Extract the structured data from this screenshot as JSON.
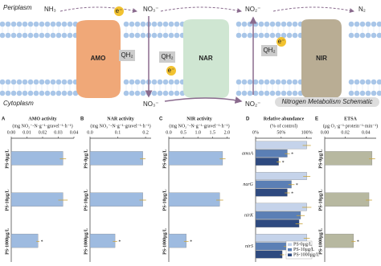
{
  "schematic": {
    "periplasm": "Periplasm",
    "cytoplasm": "Cytoplasm",
    "nh3": "NH₃",
    "no3_top": "NO₃⁻",
    "no2_top": "NO₂⁻",
    "n2": "N₂",
    "no3_bottom": "NO₃⁻",
    "no2_bottom": "NO₂⁻",
    "amo": "AMO",
    "nar": "NAR",
    "nir": "NIR",
    "qh2_1": "QH₂",
    "qh2_2": "QH₂",
    "qh2_3": "QH₂",
    "e1": "e⁻",
    "e2": "e⁻",
    "e3": "e⁻",
    "caption": "Nitrogen Metabolism Schematic"
  },
  "chart_data": [
    {
      "type": "bar",
      "panel": "A",
      "title": "AMO activity",
      "unit": "(mg NO₂⁻-N·g⁻¹·gravel⁻¹·h⁻¹)",
      "categories": [
        "PS-0μg/L",
        "PS-10μg/L",
        "PS-1000μg/L"
      ],
      "values": [
        0.033,
        0.033,
        0.017
      ],
      "errors": [
        0.002,
        0.003,
        0.001
      ],
      "stars": [
        null,
        null,
        "*"
      ],
      "color": "#9ebbe0",
      "xlim": [
        0,
        0.04
      ],
      "xticks": [
        {
          "value": 0,
          "label": "0.00"
        },
        0.01,
        0.02,
        0.03,
        0.04
      ]
    },
    {
      "type": "bar",
      "panel": "B",
      "title": "NAR activity",
      "unit": "(mg NO₃⁻-N·g⁻¹·gravel⁻¹·h⁻¹)",
      "categories": [
        "PS-0μg/L",
        "PS-10μg/L",
        "PS-1000μg/L"
      ],
      "values": [
        0.19,
        0.19,
        0.09
      ],
      "errors": [
        0.01,
        0.012,
        0.008
      ],
      "stars": [
        null,
        null,
        "*"
      ],
      "color": "#9ebbe0",
      "xlim": [
        0,
        0.22
      ],
      "xticks": [
        {
          "value": 0,
          "label": "0.0"
        },
        0.1,
        0.2
      ]
    },
    {
      "type": "bar",
      "panel": "C",
      "title": "NIR activity",
      "unit": "(mg NO₂⁻-N·g⁻¹·gravel⁻¹·h⁻¹)",
      "categories": [
        "PS-0μg/L",
        "PS-10μg/L",
        "PS-1000μg/L"
      ],
      "values": [
        1.85,
        1.75,
        0.6
      ],
      "errors": [
        0.1,
        0.12,
        0.08
      ],
      "stars": [
        null,
        null,
        "*"
      ],
      "color": "#9ebbe0",
      "xlim": [
        0,
        2.1
      ],
      "xticks": [
        {
          "value": 0,
          "label": "0.0"
        },
        0.5,
        {
          "value": 1,
          "label": "1.0"
        },
        1.5,
        {
          "value": 2,
          "label": "2.0"
        }
      ]
    },
    {
      "type": "bar",
      "panel": "D",
      "title": "Relative abundance",
      "unit": "(% of control)",
      "categories": [
        "amoA",
        "narG",
        "nirK",
        "nirS"
      ],
      "series": [
        {
          "name": "PS-0μg/L",
          "color": "#c5d3ea",
          "values": [
            100,
            100,
            100,
            100
          ],
          "errors": [
            8,
            7,
            9,
            6
          ],
          "stars": [
            null,
            null,
            null,
            null
          ]
        },
        {
          "name": "PS-10μg/L",
          "color": "#5b7fb5",
          "values": [
            62,
            70,
            88,
            60
          ],
          "errors": [
            5,
            6,
            8,
            5
          ],
          "stars": [
            "*",
            "*",
            null,
            "*"
          ]
        },
        {
          "name": "PS-1000μg/L",
          "color": "#2e4a80",
          "values": [
            45,
            62,
            85,
            52
          ],
          "errors": [
            4,
            5,
            7,
            4
          ],
          "stars": [
            "*",
            "*",
            null,
            "*"
          ]
        }
      ],
      "legend": "lower right",
      "xlim": [
        0,
        110
      ],
      "xticks": [
        {
          "value": 0,
          "label": "0%"
        },
        {
          "value": 50,
          "label": "50%"
        },
        {
          "value": 100,
          "label": "100%"
        }
      ]
    },
    {
      "type": "bar",
      "panel": "E",
      "title": "ETSA",
      "unit": "(μg O₂·g⁻¹·protein⁻¹·min⁻¹)",
      "categories": [
        "PS-0μg/L",
        "PS-10μg/L",
        "PS-1000μg/L"
      ],
      "values": [
        0.046,
        0.043,
        0.028
      ],
      "errors": [
        0.003,
        0.003,
        0.002
      ],
      "stars": [
        null,
        null,
        "*"
      ],
      "color": "#b7b8a0",
      "xlim": [
        0,
        0.05
      ],
      "xticks": [
        {
          "value": 0,
          "label": "0.00"
        },
        0.02,
        0.04
      ]
    }
  ]
}
